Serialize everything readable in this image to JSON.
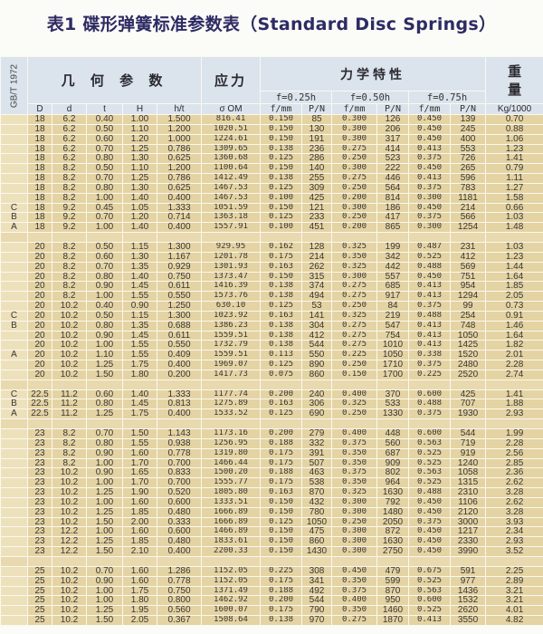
{
  "title": "表1  碟形弹簧标准参数表（Standard Disc Springs）",
  "header": {
    "standard": "GB/T 1972",
    "geometry": "几 何 参 数",
    "stress": "应力",
    "mechanics": "力学特性",
    "weight": "重量",
    "f025": "f=0.25h",
    "f050": "f=0.50h",
    "f075": "f=0.75h",
    "columns": [
      "D",
      "d",
      "t",
      "H",
      "h/t",
      "σ OM",
      "f/mm",
      "P/N",
      "f/mm",
      "P/N",
      "f/mm",
      "P/N",
      "Kg/1000"
    ]
  },
  "groups": [
    {
      "rows": [
        [
          "",
          "18",
          "6.2",
          "0.40",
          "1.00",
          "1.500",
          "816.41",
          "0.150",
          "85",
          "0.300",
          "126",
          "0.450",
          "139",
          "0.70"
        ],
        [
          "",
          "18",
          "6.2",
          "0.50",
          "1.10",
          "1.200",
          "1020.51",
          "0.150",
          "130",
          "0.300",
          "206",
          "0.450",
          "245",
          "0.88"
        ],
        [
          "",
          "18",
          "6.2",
          "0.60",
          "1.20",
          "1.000",
          "1224.61",
          "0.150",
          "191",
          "0.300",
          "317",
          "0.450",
          "400",
          "1.06"
        ],
        [
          "",
          "18",
          "6.2",
          "0.70",
          "1.25",
          "0.786",
          "1309.65",
          "0.138",
          "236",
          "0.275",
          "414",
          "0.413",
          "553",
          "1.23"
        ],
        [
          "",
          "18",
          "6.2",
          "0.80",
          "1.30",
          "0.625",
          "1360.68",
          "0.125",
          "286",
          "0.250",
          "523",
          "0.375",
          "726",
          "1.41"
        ],
        [
          "",
          "18",
          "8.2",
          "0.50",
          "1.10",
          "1.200",
          "1100.64",
          "0.150",
          "140",
          "0.300",
          "222",
          "0.450",
          "265",
          "0.79"
        ],
        [
          "",
          "18",
          "8.2",
          "0.70",
          "1.25",
          "0.786",
          "1412.49",
          "0.138",
          "255",
          "0.275",
          "446",
          "0.413",
          "596",
          "1.11"
        ],
        [
          "",
          "18",
          "8.2",
          "0.80",
          "1.30",
          "0.625",
          "1467.53",
          "0.125",
          "309",
          "0.250",
          "564",
          "0.375",
          "783",
          "1.27"
        ],
        [
          "",
          "18",
          "8.2",
          "1.00",
          "1.40",
          "0.400",
          "1467.53",
          "0.100",
          "425",
          "0.200",
          "814",
          "0.300",
          "1181",
          "1.58"
        ],
        [
          "C",
          "18",
          "9.2",
          "0.45",
          "1.05",
          "1.333",
          "1051.59",
          "0.150",
          "121",
          "0.300",
          "186",
          "0.450",
          "214",
          "0.66"
        ],
        [
          "B",
          "18",
          "9.2",
          "0.70",
          "1.20",
          "0.714",
          "1363.18",
          "0.125",
          "233",
          "0.250",
          "417",
          "0.375",
          "566",
          "1.03"
        ],
        [
          "A",
          "18",
          "9.2",
          "1.00",
          "1.40",
          "0.400",
          "1557.91",
          "0.100",
          "451",
          "0.200",
          "865",
          "0.300",
          "1254",
          "1.48"
        ]
      ]
    },
    {
      "rows": [
        [
          "",
          "20",
          "8.2",
          "0.50",
          "1.15",
          "1.300",
          "929.95",
          "0.162",
          "128",
          "0.325",
          "199",
          "0.487",
          "231",
          "1.03"
        ],
        [
          "",
          "20",
          "8.2",
          "0.60",
          "1.30",
          "1.167",
          "1201.78",
          "0.175",
          "214",
          "0.350",
          "342",
          "0.525",
          "412",
          "1.23"
        ],
        [
          "",
          "20",
          "8.2",
          "0.70",
          "1.35",
          "0.929",
          "1301.93",
          "0.163",
          "262",
          "0.325",
          "442",
          "0.488",
          "569",
          "1.44"
        ],
        [
          "",
          "20",
          "8.2",
          "0.80",
          "1.40",
          "0.750",
          "1373.47",
          "0.150",
          "315",
          "0.300",
          "557",
          "0.450",
          "751",
          "1.64"
        ],
        [
          "",
          "20",
          "8.2",
          "0.90",
          "1.45",
          "0.611",
          "1416.39",
          "0.138",
          "374",
          "0.275",
          "685",
          "0.413",
          "954",
          "1.85"
        ],
        [
          "",
          "20",
          "8.2",
          "1.00",
          "1.55",
          "0.550",
          "1573.76",
          "0.138",
          "494",
          "0.275",
          "917",
          "0.413",
          "1294",
          "2.05"
        ],
        [
          "",
          "20",
          "10.2",
          "0.40",
          "0.90",
          "1.250",
          "630.10",
          "0.125",
          "53",
          "0.250",
          "84",
          "0.375",
          "99",
          "0.73"
        ],
        [
          "C",
          "20",
          "10.2",
          "0.50",
          "1.15",
          "1.300",
          "1023.92",
          "0.163",
          "141",
          "0.325",
          "219",
          "0.488",
          "254",
          "0.91"
        ],
        [
          "B",
          "20",
          "10.2",
          "0.80",
          "1.35",
          "0.688",
          "1386.23",
          "0.138",
          "304",
          "0.275",
          "547",
          "0.413",
          "748",
          "1.46"
        ],
        [
          "",
          "20",
          "10.2",
          "0.90",
          "1.45",
          "0.611",
          "1559.51",
          "0.138",
          "412",
          "0.275",
          "754",
          "0.413",
          "1050",
          "1.64"
        ],
        [
          "",
          "20",
          "10.2",
          "1.00",
          "1.55",
          "0.550",
          "1732.79",
          "0.138",
          "544",
          "0.275",
          "1010",
          "0.413",
          "1425",
          "1.82"
        ],
        [
          "A",
          "20",
          "10.2",
          "1.10",
          "1.55",
          "0.409",
          "1559.51",
          "0.113",
          "550",
          "0.225",
          "1050",
          "0.338",
          "1520",
          "2.01"
        ],
        [
          "",
          "20",
          "10.2",
          "1.25",
          "1.75",
          "0.400",
          "1969.07",
          "0.125",
          "890",
          "0.250",
          "1710",
          "0.375",
          "2480",
          "2.28"
        ],
        [
          "",
          "20",
          "10.2",
          "1.50",
          "1.80",
          "0.200",
          "1417.73",
          "0.075",
          "860",
          "0.150",
          "1700",
          "0.225",
          "2520",
          "2.74"
        ]
      ]
    },
    {
      "rows": [
        [
          "C",
          "22.5",
          "11.2",
          "0.60",
          "1.40",
          "1.333",
          "1177.74",
          "0.200",
          "240",
          "0.400",
          "370",
          "0.600",
          "425",
          "1.41"
        ],
        [
          "B",
          "22.5",
          "11.2",
          "0.80",
          "1.45",
          "0.813",
          "1275.89",
          "0.163",
          "306",
          "0.325",
          "533",
          "0.488",
          "707",
          "1.88"
        ],
        [
          "A",
          "22.5",
          "11.2",
          "1.25",
          "1.75",
          "0.400",
          "1533.52",
          "0.125",
          "690",
          "0.250",
          "1330",
          "0.375",
          "1930",
          "2.93"
        ]
      ]
    },
    {
      "rows": [
        [
          "",
          "23",
          "8.2",
          "0.70",
          "1.50",
          "1.143",
          "1173.16",
          "0.200",
          "279",
          "0.400",
          "448",
          "0.600",
          "544",
          "1.99"
        ],
        [
          "",
          "23",
          "8.2",
          "0.80",
          "1.55",
          "0.938",
          "1256.95",
          "0.188",
          "332",
          "0.375",
          "560",
          "0.563",
          "719",
          "2.28"
        ],
        [
          "",
          "23",
          "8.2",
          "0.90",
          "1.60",
          "0.778",
          "1319.80",
          "0.175",
          "391",
          "0.350",
          "687",
          "0.525",
          "919",
          "2.56"
        ],
        [
          "",
          "23",
          "8.2",
          "1.00",
          "1.70",
          "0.700",
          "1466.44",
          "0.175",
          "507",
          "0.350",
          "909",
          "0.525",
          "1240",
          "2.85"
        ],
        [
          "",
          "23",
          "10.2",
          "0.90",
          "1.65",
          "0.833",
          "1500.20",
          "0.188",
          "463",
          "0.375",
          "802",
          "0.563",
          "1058",
          "2.36"
        ],
        [
          "",
          "23",
          "10.2",
          "1.00",
          "1.70",
          "0.700",
          "1555.77",
          "0.175",
          "538",
          "0.350",
          "964",
          "0.525",
          "1315",
          "2.62"
        ],
        [
          "",
          "23",
          "10.2",
          "1.25",
          "1.90",
          "0.520",
          "1805.80",
          "0.163",
          "870",
          "0.325",
          "1630",
          "0.488",
          "2310",
          "3.28"
        ],
        [
          "",
          "23",
          "10.2",
          "1.00",
          "1.60",
          "0.600",
          "1333.51",
          "0.150",
          "432",
          "0.300",
          "792",
          "0.450",
          "1106",
          "2.62"
        ],
        [
          "",
          "23",
          "10.2",
          "1.25",
          "1.85",
          "0.480",
          "1666.89",
          "0.150",
          "780",
          "0.300",
          "1480",
          "0.450",
          "2120",
          "3.28"
        ],
        [
          "",
          "23",
          "10.2",
          "1.50",
          "2.00",
          "0.333",
          "1666.89",
          "0.125",
          "1050",
          "0.250",
          "2050",
          "0.375",
          "3000",
          "3.93"
        ],
        [
          "",
          "23",
          "12.2",
          "1.00",
          "1.60",
          "0.600",
          "1466.89",
          "0.150",
          "475",
          "0.300",
          "872",
          "0.450",
          "1217",
          "2.34"
        ],
        [
          "",
          "23",
          "12.2",
          "1.25",
          "1.85",
          "0.480",
          "1833.61",
          "0.150",
          "860",
          "0.300",
          "1630",
          "0.450",
          "2330",
          "2.93"
        ],
        [
          "",
          "23",
          "12.2",
          "1.50",
          "2.10",
          "0.400",
          "2200.33",
          "0.150",
          "1430",
          "0.300",
          "2750",
          "0.450",
          "3990",
          "3.52"
        ]
      ]
    },
    {
      "rows": [
        [
          "",
          "25",
          "10.2",
          "0.70",
          "1.60",
          "1.286",
          "1152.05",
          "0.225",
          "308",
          "0.450",
          "479",
          "0.675",
          "591",
          "2.25"
        ],
        [
          "",
          "25",
          "10.2",
          "0.90",
          "1.60",
          "0.778",
          "1152.05",
          "0.175",
          "341",
          "0.350",
          "599",
          "0.525",
          "977",
          "2.89"
        ],
        [
          "",
          "25",
          "10.2",
          "1.00",
          "1.75",
          "0.750",
          "1371.49",
          "0.188",
          "492",
          "0.375",
          "870",
          "0.563",
          "1436",
          "3.21"
        ],
        [
          "",
          "25",
          "10.2",
          "1.00",
          "1.80",
          "0.800",
          "1462.92",
          "0.200",
          "544",
          "0.400",
          "950",
          "0.600",
          "1532",
          "3.21"
        ],
        [
          "",
          "25",
          "10.2",
          "1.25",
          "1.95",
          "0.560",
          "1600.07",
          "0.175",
          "790",
          "0.350",
          "1460",
          "0.525",
          "2620",
          "4.01"
        ],
        [
          "",
          "25",
          "10.2",
          "1.50",
          "2.05",
          "0.367",
          "1508.64",
          "0.138",
          "970",
          "0.275",
          "1870",
          "0.413",
          "3550",
          "4.82"
        ]
      ]
    }
  ]
}
